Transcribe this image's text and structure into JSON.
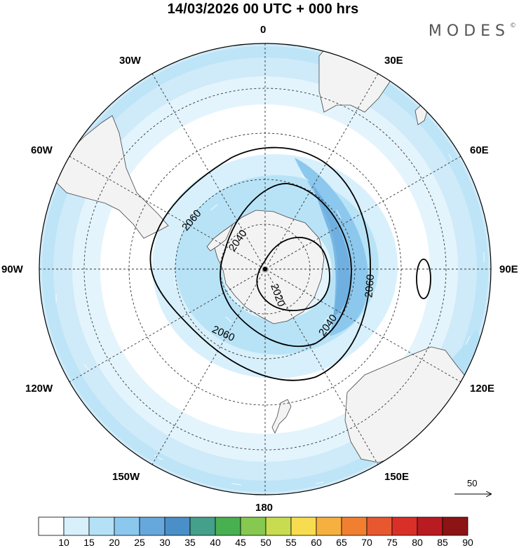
{
  "title": "14/03/2026  00 UTC  + 000 hrs",
  "brand": "MODES",
  "brand_mark": "©",
  "longitude_labels": {
    "l0": "0",
    "l30e": "30E",
    "l60e": "60E",
    "l90e": "90E",
    "l120e": "120E",
    "l150e": "150E",
    "l180": "180",
    "l150w": "150W",
    "l120w": "120W",
    "l90w": "90W",
    "l60w": "60W",
    "l30w": "30W"
  },
  "contours": {
    "c2020": "2020",
    "c2040a": "2040",
    "c2040b": "2040",
    "c2060a": "2060",
    "c2060b": "2060",
    "c2060c": "2060"
  },
  "reference_vector": "50",
  "colorbar": {
    "labels": [
      "10",
      "15",
      "20",
      "25",
      "30",
      "35",
      "40",
      "45",
      "50",
      "55",
      "60",
      "65",
      "70",
      "75",
      "80",
      "85",
      "90"
    ],
    "colors": [
      "#ffffff",
      "#d8f0fb",
      "#b5e1f6",
      "#8cc8ee",
      "#66a8dc",
      "#4a8fc8",
      "#44a08a",
      "#48b050",
      "#86c850",
      "#c8dc50",
      "#f8dc50",
      "#f6b040",
      "#f08030",
      "#e85830",
      "#d83028",
      "#b81c22",
      "#8c1414"
    ]
  }
}
